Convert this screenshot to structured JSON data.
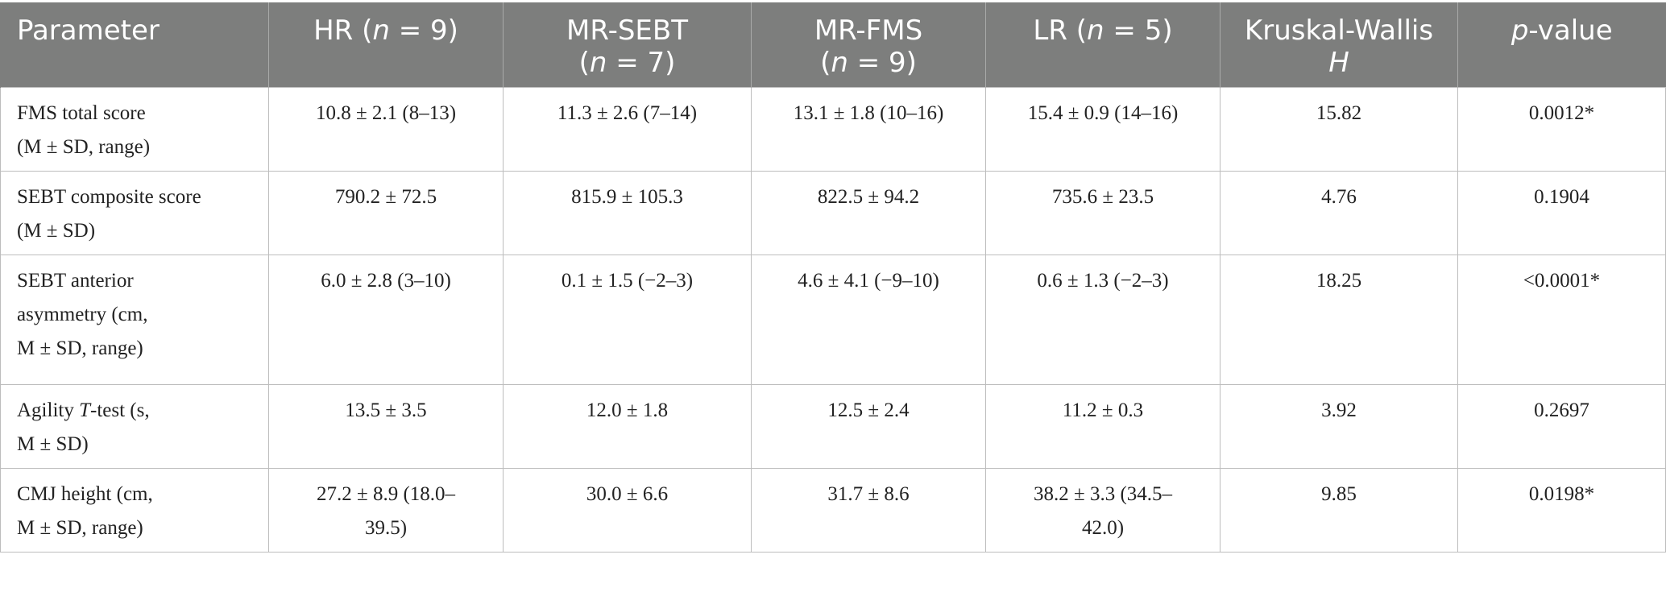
{
  "header": {
    "parameter": "Parameter",
    "hr": {
      "pre": "HR (",
      "n": "n",
      "post": " = 9)"
    },
    "mr_sebt": {
      "line1": "MR-SEBT",
      "pre": "(",
      "n": "n",
      "post": " = 7)"
    },
    "mr_fms": {
      "line1": "MR-FMS",
      "pre": "(",
      "n": "n",
      "post": " = 9)"
    },
    "lr": {
      "pre": "LR (",
      "n": "n",
      "post": " = 5)"
    },
    "kw": {
      "line1": "Kruskal-Wallis",
      "h": "H"
    },
    "pvalue": {
      "p": "p",
      "post": "-value"
    }
  },
  "rows": [
    {
      "param_lines": [
        "FMS total score",
        "(M ± SD, range)"
      ],
      "hr": [
        "10.8 ± 2.1 (8–13)"
      ],
      "mr_sebt": [
        "11.3 ± 2.6 (7–14)"
      ],
      "mr_fms": [
        "13.1 ± 1.8 (10–16)"
      ],
      "lr": [
        "15.4 ± 0.9 (14–16)"
      ],
      "h": "15.82",
      "p": "0.0012*"
    },
    {
      "param_lines": [
        "SEBT composite score",
        "(M ± SD)"
      ],
      "hr": [
        "790.2 ± 72.5"
      ],
      "mr_sebt": [
        "815.9 ± 105.3"
      ],
      "mr_fms": [
        "822.5 ± 94.2"
      ],
      "lr": [
        "735.6 ± 23.5"
      ],
      "h": "4.76",
      "p": "0.1904"
    },
    {
      "param_lines": [
        "SEBT anterior",
        "asymmetry (cm,",
        "M ± SD, range)"
      ],
      "hr": [
        "6.0 ± 2.8 (3–10)"
      ],
      "mr_sebt": [
        "0.1 ± 1.5 (−2–3)"
      ],
      "mr_fms": [
        "4.6 ± 4.1 (−9–10)"
      ],
      "lr": [
        "0.6 ± 1.3 (−2–3)"
      ],
      "h": "18.25",
      "p": "<0.0001*"
    },
    {
      "param_agility": {
        "pre": "Agility ",
        "t": "T",
        "post": "-test (s,",
        "line2": "M ± SD)"
      },
      "hr": [
        "13.5 ± 3.5"
      ],
      "mr_sebt": [
        "12.0 ± 1.8"
      ],
      "mr_fms": [
        "12.5 ± 2.4"
      ],
      "lr": [
        "11.2 ± 0.3"
      ],
      "h": "3.92",
      "p": "0.2697"
    },
    {
      "param_lines": [
        "CMJ height (cm,",
        "M ± SD, range)"
      ],
      "hr": [
        "27.2 ± 8.9 (18.0–",
        "39.5)"
      ],
      "mr_sebt": [
        "30.0 ± 6.6"
      ],
      "mr_fms": [
        "31.7 ± 8.6"
      ],
      "lr": [
        "38.2 ± 3.3 (34.5–",
        "42.0)"
      ],
      "h": "9.85",
      "p": "0.0198*"
    }
  ]
}
